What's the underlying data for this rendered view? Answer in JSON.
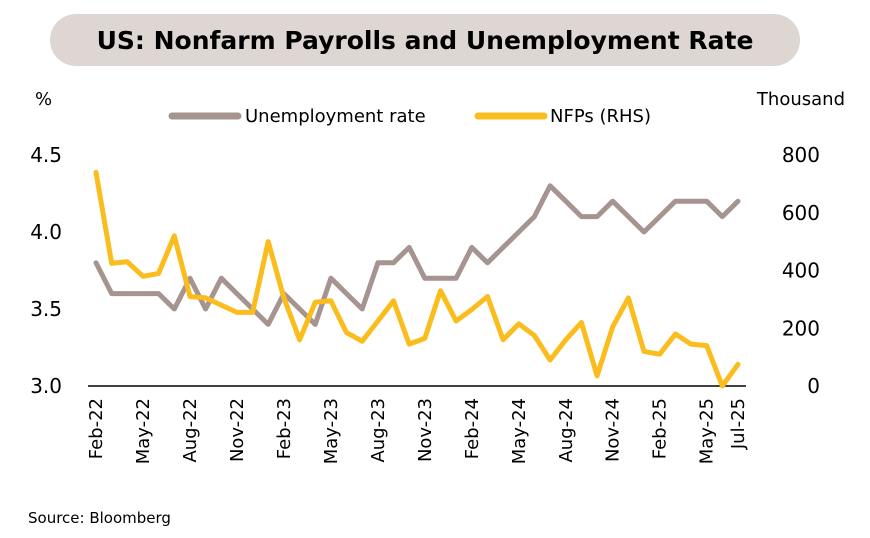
{
  "title": "US: Nonfarm Payrolls and Unemployment Rate",
  "source": "Source: Bloomberg",
  "chart_data": {
    "type": "line",
    "left_axis": {
      "unit": "%",
      "ylim": [
        3.0,
        4.5
      ],
      "ticks": [
        "3.0",
        "3.5",
        "4.0",
        "4.5"
      ]
    },
    "right_axis": {
      "unit": "Thousand",
      "ylim": [
        0,
        800
      ],
      "ticks": [
        "0",
        "200",
        "400",
        "600",
        "800"
      ]
    },
    "x_labels": [
      {
        "label": "Feb-22",
        "index": 0
      },
      {
        "label": "May-22",
        "index": 3
      },
      {
        "label": "Aug-22",
        "index": 6
      },
      {
        "label": "Nov-22",
        "index": 9
      },
      {
        "label": "Feb-23",
        "index": 12
      },
      {
        "label": "May-23",
        "index": 15
      },
      {
        "label": "Aug-23",
        "index": 18
      },
      {
        "label": "Nov-23",
        "index": 21
      },
      {
        "label": "Feb-24",
        "index": 24
      },
      {
        "label": "May-24",
        "index": 27
      },
      {
        "label": "Aug-24",
        "index": 30
      },
      {
        "label": "Nov-24",
        "index": 33
      },
      {
        "label": "Feb-25",
        "index": 36
      },
      {
        "label": "May-25",
        "index": 39
      },
      {
        "label": "Jul-25",
        "index": 41
      }
    ],
    "legend": {
      "position": "top-center"
    },
    "grid": false,
    "series": [
      {
        "name": "Unemployment rate",
        "axis": "left",
        "color": "#a69490",
        "values": [
          3.8,
          3.6,
          3.6,
          3.6,
          3.6,
          3.5,
          3.7,
          3.5,
          3.7,
          3.6,
          3.5,
          3.4,
          3.6,
          3.5,
          3.4,
          3.7,
          3.6,
          3.5,
          3.8,
          3.8,
          3.9,
          3.7,
          3.7,
          3.7,
          3.9,
          3.8,
          3.9,
          4.0,
          4.1,
          4.3,
          4.2,
          4.1,
          4.1,
          4.2,
          4.1,
          4.0,
          4.1,
          4.2,
          4.2,
          4.2,
          4.1,
          4.2
        ]
      },
      {
        "name": "NFPs (RHS)",
        "axis": "right",
        "color": "#fbbd1e",
        "values": [
          740,
          425,
          430,
          380,
          390,
          520,
          310,
          305,
          280,
          255,
          255,
          500,
          305,
          160,
          290,
          295,
          185,
          155,
          225,
          295,
          145,
          165,
          330,
          225,
          265,
          310,
          160,
          215,
          175,
          90,
          160,
          220,
          35,
          205,
          305,
          120,
          110,
          180,
          145,
          140,
          0,
          75
        ]
      }
    ]
  }
}
